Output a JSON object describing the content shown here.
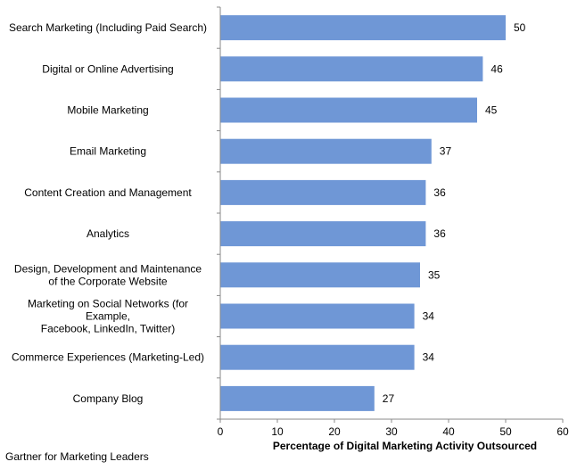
{
  "chart_data": {
    "type": "bar",
    "orientation": "horizontal",
    "categories": [
      "Search Marketing (Including Paid Search)",
      "Digital or Online Advertising",
      "Mobile Marketing",
      "Email Marketing",
      "Content Creation and Management",
      "Analytics",
      "Design, Development and Maintenance\nof the Corporate Website",
      "Marketing on Social Networks (for\nExample,\nFacebook, LinkedIn, Twitter)",
      "Commerce Experiences (Marketing-Led)",
      "Company Blog"
    ],
    "values": [
      50,
      46,
      45,
      37,
      36,
      36,
      35,
      34,
      34,
      27
    ],
    "title": "",
    "xlabel": "Percentage of Digital Marketing Activity Outsourced",
    "ylabel": "",
    "xlim": [
      0,
      60
    ],
    "xticks": [
      0,
      10,
      20,
      30,
      40,
      50,
      60
    ],
    "grid": false,
    "data_labels": true,
    "bar_color": "#6f97d6"
  },
  "source": "Gartner for Marketing Leaders"
}
